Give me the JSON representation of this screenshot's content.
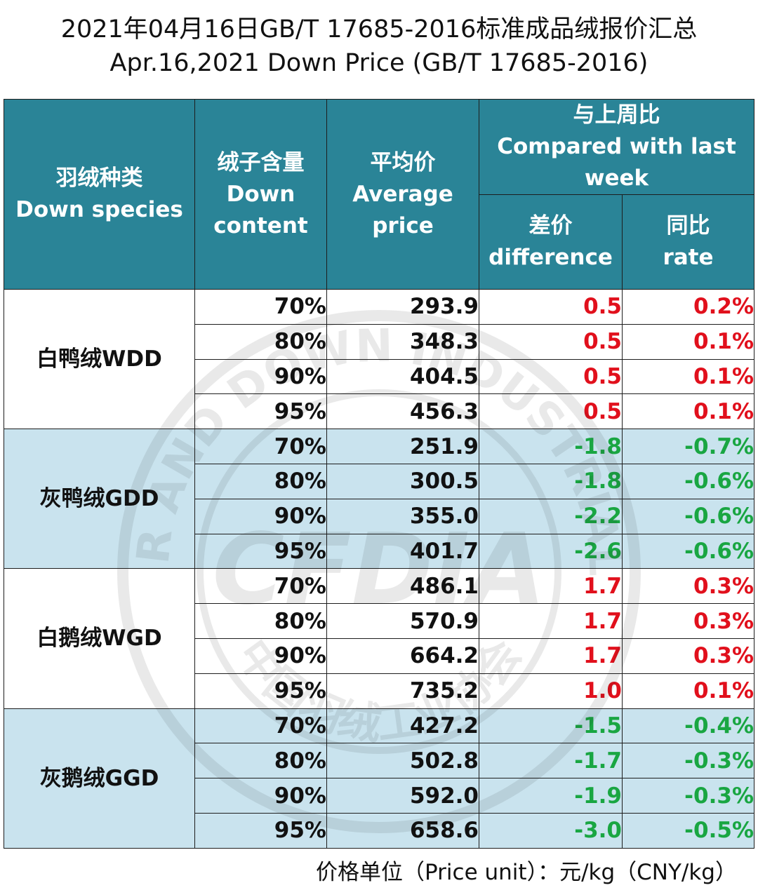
{
  "title_line1": "2021年04月16日GB/T 17685-2016标准成品绒报价汇总",
  "title_line2": "Apr.16,2021 Down Price (GB/T 17685-2016)",
  "headers": {
    "species_cn": "羽绒种类",
    "species_en": "Down species",
    "content_cn": "绒子含量",
    "content_en1": "Down",
    "content_en2": "content",
    "price_cn": "平均价",
    "price_en1": "Average",
    "price_en2": "price",
    "compare_cn": "与上周比",
    "compare_en1": "Compared with last",
    "compare_en2": "week",
    "diff_cn": "差价",
    "diff_en": "difference",
    "rate_cn": "同比",
    "rate_en": "rate"
  },
  "groups": [
    {
      "species": "白鸭绒WDD",
      "trend": "up",
      "rows": [
        {
          "content": "70%",
          "price": "293.9",
          "diff": "0.5",
          "rate": "0.2%"
        },
        {
          "content": "80%",
          "price": "348.3",
          "diff": "0.5",
          "rate": "0.1%"
        },
        {
          "content": "90%",
          "price": "404.5",
          "diff": "0.5",
          "rate": "0.1%"
        },
        {
          "content": "95%",
          "price": "456.3",
          "diff": "0.5",
          "rate": "0.1%"
        }
      ]
    },
    {
      "species": "灰鸭绒GDD",
      "trend": "down",
      "rows": [
        {
          "content": "70%",
          "price": "251.9",
          "diff": "-1.8",
          "rate": "-0.7%"
        },
        {
          "content": "80%",
          "price": "300.5",
          "diff": "-1.8",
          "rate": "-0.6%"
        },
        {
          "content": "90%",
          "price": "355.0",
          "diff": "-2.2",
          "rate": "-0.6%"
        },
        {
          "content": "95%",
          "price": "401.7",
          "diff": "-2.6",
          "rate": "-0.6%"
        }
      ]
    },
    {
      "species": "白鹅绒WGD",
      "trend": "up",
      "rows": [
        {
          "content": "70%",
          "price": "486.1",
          "diff": "1.7",
          "rate": "0.3%"
        },
        {
          "content": "80%",
          "price": "570.9",
          "diff": "1.7",
          "rate": "0.3%"
        },
        {
          "content": "90%",
          "price": "664.2",
          "diff": "1.7",
          "rate": "0.3%"
        },
        {
          "content": "95%",
          "price": "735.2",
          "diff": "1.0",
          "rate": "0.1%"
        }
      ]
    },
    {
      "species": "灰鹅绒GGD",
      "trend": "down",
      "rows": [
        {
          "content": "70%",
          "price": "427.2",
          "diff": "-1.5",
          "rate": "-0.4%"
        },
        {
          "content": "80%",
          "price": "502.8",
          "diff": "-1.7",
          "rate": "-0.3%"
        },
        {
          "content": "90%",
          "price": "592.0",
          "diff": "-1.9",
          "rate": "-0.3%"
        },
        {
          "content": "95%",
          "price": "658.6",
          "diff": "-3.0",
          "rate": "-0.5%"
        }
      ]
    }
  ],
  "colors": {
    "header_bg": "#2a8497",
    "alt_row_bg": "#c9e3ee",
    "positive": "#e1101c",
    "negative": "#19a642"
  },
  "watermark": {
    "icon": "association-seal-icon",
    "text_en": "CHINA FEATHER AND DOWN INDUSTRIAL ASSOCIATION",
    "text_cn": "中国羽绒工业协会",
    "abbr": "CFDIA"
  },
  "footer": "价格单位（Price unit）：元/kg（CNY/kg）"
}
